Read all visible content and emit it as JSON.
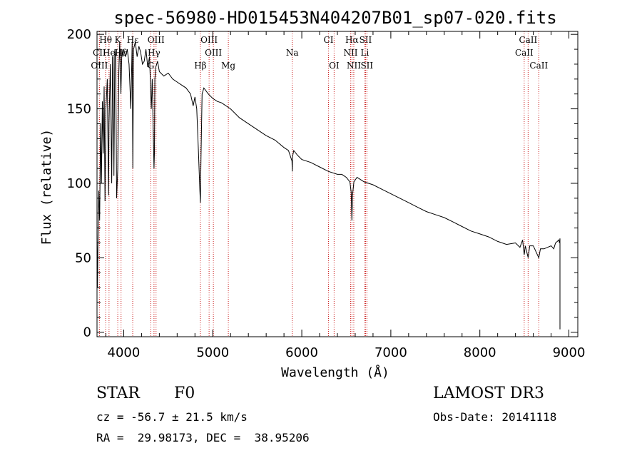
{
  "chart_data": {
    "type": "line",
    "title": "spec-56980-HD015453N404207B01_sp07-020.fits",
    "xlabel": "Wavelength (Å)",
    "ylabel": "Flux (relative)",
    "xlim": [
      3700,
      9100
    ],
    "ylim": [
      -3,
      202
    ],
    "xticks": [
      4000,
      5000,
      6000,
      7000,
      8000,
      9000
    ],
    "yticks": [
      0,
      50,
      100,
      150,
      200
    ],
    "series": [
      {
        "name": "flux",
        "x": [
          3700,
          3705,
          3710,
          3720,
          3730,
          3740,
          3750,
          3760,
          3770,
          3780,
          3790,
          3800,
          3815,
          3830,
          3835,
          3850,
          3865,
          3875,
          3880,
          3890,
          3900,
          3910,
          3920,
          3933,
          3945,
          3955,
          3968,
          3980,
          3990,
          4000,
          4020,
          4040,
          4060,
          4080,
          4095,
          4102,
          4110,
          4130,
          4150,
          4170,
          4190,
          4210,
          4230,
          4250,
          4270,
          4290,
          4310,
          4320,
          4330,
          4340,
          4345,
          4350,
          4360,
          4380,
          4400,
          4450,
          4500,
          4550,
          4600,
          4650,
          4700,
          4750,
          4780,
          4800,
          4820,
          4840,
          4855,
          4861,
          4868,
          4880,
          4900,
          4950,
          5000,
          5050,
          5100,
          5200,
          5300,
          5400,
          5500,
          5600,
          5700,
          5800,
          5850,
          5890,
          5893,
          5896,
          5910,
          5950,
          6000,
          6100,
          6200,
          6300,
          6400,
          6450,
          6500,
          6540,
          6555,
          6563,
          6570,
          6585,
          6620,
          6700,
          6800,
          6900,
          7000,
          7100,
          7200,
          7300,
          7400,
          7500,
          7600,
          7700,
          7800,
          7900,
          8000,
          8100,
          8200,
          8300,
          8400,
          8450,
          8480,
          8498,
          8510,
          8542,
          8560,
          8600,
          8662,
          8680,
          8720,
          8760,
          8800,
          8830,
          8850,
          8870,
          8885,
          8895,
          8900
        ],
        "y": [
          60,
          30,
          58,
          95,
          75,
          140,
          100,
          155,
          120,
          165,
          88,
          150,
          170,
          92,
          140,
          180,
          100,
          185,
          185,
          105,
          190,
          185,
          90,
          110,
          175,
          195,
          160,
          190,
          185,
          190,
          185,
          190,
          180,
          150,
          195,
          110,
          190,
          195,
          185,
          192,
          188,
          180,
          182,
          190,
          178,
          185,
          150,
          170,
          140,
          110,
          120,
          170,
          178,
          182,
          175,
          172,
          174,
          170,
          168,
          166,
          164,
          160,
          152,
          158,
          150,
          120,
          95,
          87,
          118,
          160,
          164,
          160,
          157,
          155,
          154,
          150,
          144,
          140,
          136,
          132,
          129,
          124,
          122,
          115,
          108,
          118,
          122,
          119,
          116,
          114,
          111,
          108,
          106,
          106,
          104,
          101,
          94,
          75,
          92,
          101,
          104,
          101,
          99,
          96,
          93,
          90,
          87,
          84,
          81,
          79,
          77,
          74,
          71,
          68,
          66,
          64,
          61,
          59,
          60,
          57,
          62,
          52,
          58,
          50,
          58,
          58,
          50,
          56,
          56,
          57,
          58,
          56,
          60,
          61,
          62,
          60,
          63
        ]
      }
    ],
    "lines": [
      {
        "name": "Hθ",
        "x": 3797,
        "row": 0
      },
      {
        "name": "CII",
        "x": 3727,
        "row": 1
      },
      {
        "name": "OIII",
        "x": 3727,
        "row": 2
      },
      {
        "name": "He",
        "x": 3835,
        "row": 1
      },
      {
        "name": "K",
        "x": 3933,
        "row": 0
      },
      {
        "name": "Hδ",
        "x": 3970,
        "row": 1
      },
      {
        "name": "Hε",
        "x": 4101,
        "row": 0
      },
      {
        "name": "OIII",
        "x": 4363,
        "row": 0
      },
      {
        "name": "Hγ",
        "x": 4340,
        "row": 1
      },
      {
        "name": "G",
        "x": 4304,
        "row": 2
      },
      {
        "name": "OIII",
        "x": 4959,
        "row": 0
      },
      {
        "name": "OIII",
        "x": 5007,
        "row": 1
      },
      {
        "name": "Hβ",
        "x": 4861,
        "row": 2
      },
      {
        "name": "Mg",
        "x": 5175,
        "row": 2
      },
      {
        "name": "Na",
        "x": 5893,
        "row": 1
      },
      {
        "name": "CI",
        "x": 6300,
        "row": 0
      },
      {
        "name": "OI",
        "x": 6363,
        "row": 2
      },
      {
        "name": "Hα",
        "x": 6563,
        "row": 0
      },
      {
        "name": "NII",
        "x": 6548,
        "row": 1
      },
      {
        "name": "NII",
        "x": 6584,
        "row": 2
      },
      {
        "name": "SII",
        "x": 6716,
        "row": 0
      },
      {
        "name": "Li",
        "x": 6708,
        "row": 1
      },
      {
        "name": "SII",
        "x": 6731,
        "row": 2
      },
      {
        "name": "CaII",
        "x": 8542,
        "row": 0
      },
      {
        "name": "CaII",
        "x": 8498,
        "row": 1
      },
      {
        "name": "CaII",
        "x": 8662,
        "row": 2
      }
    ]
  },
  "info": {
    "object_type": "STAR",
    "subclass": "F0",
    "survey": "LAMOST DR3",
    "redshift_line": "cz = -56.7 ± 21.5 km/s",
    "obs_date_line": "Obs-Date: 20141118",
    "coords_line": "RA =  29.98173, DEC =  38.95206"
  },
  "colors": {
    "axis": "#000000",
    "spectrum": "#000000",
    "marker": "#cc2222"
  }
}
